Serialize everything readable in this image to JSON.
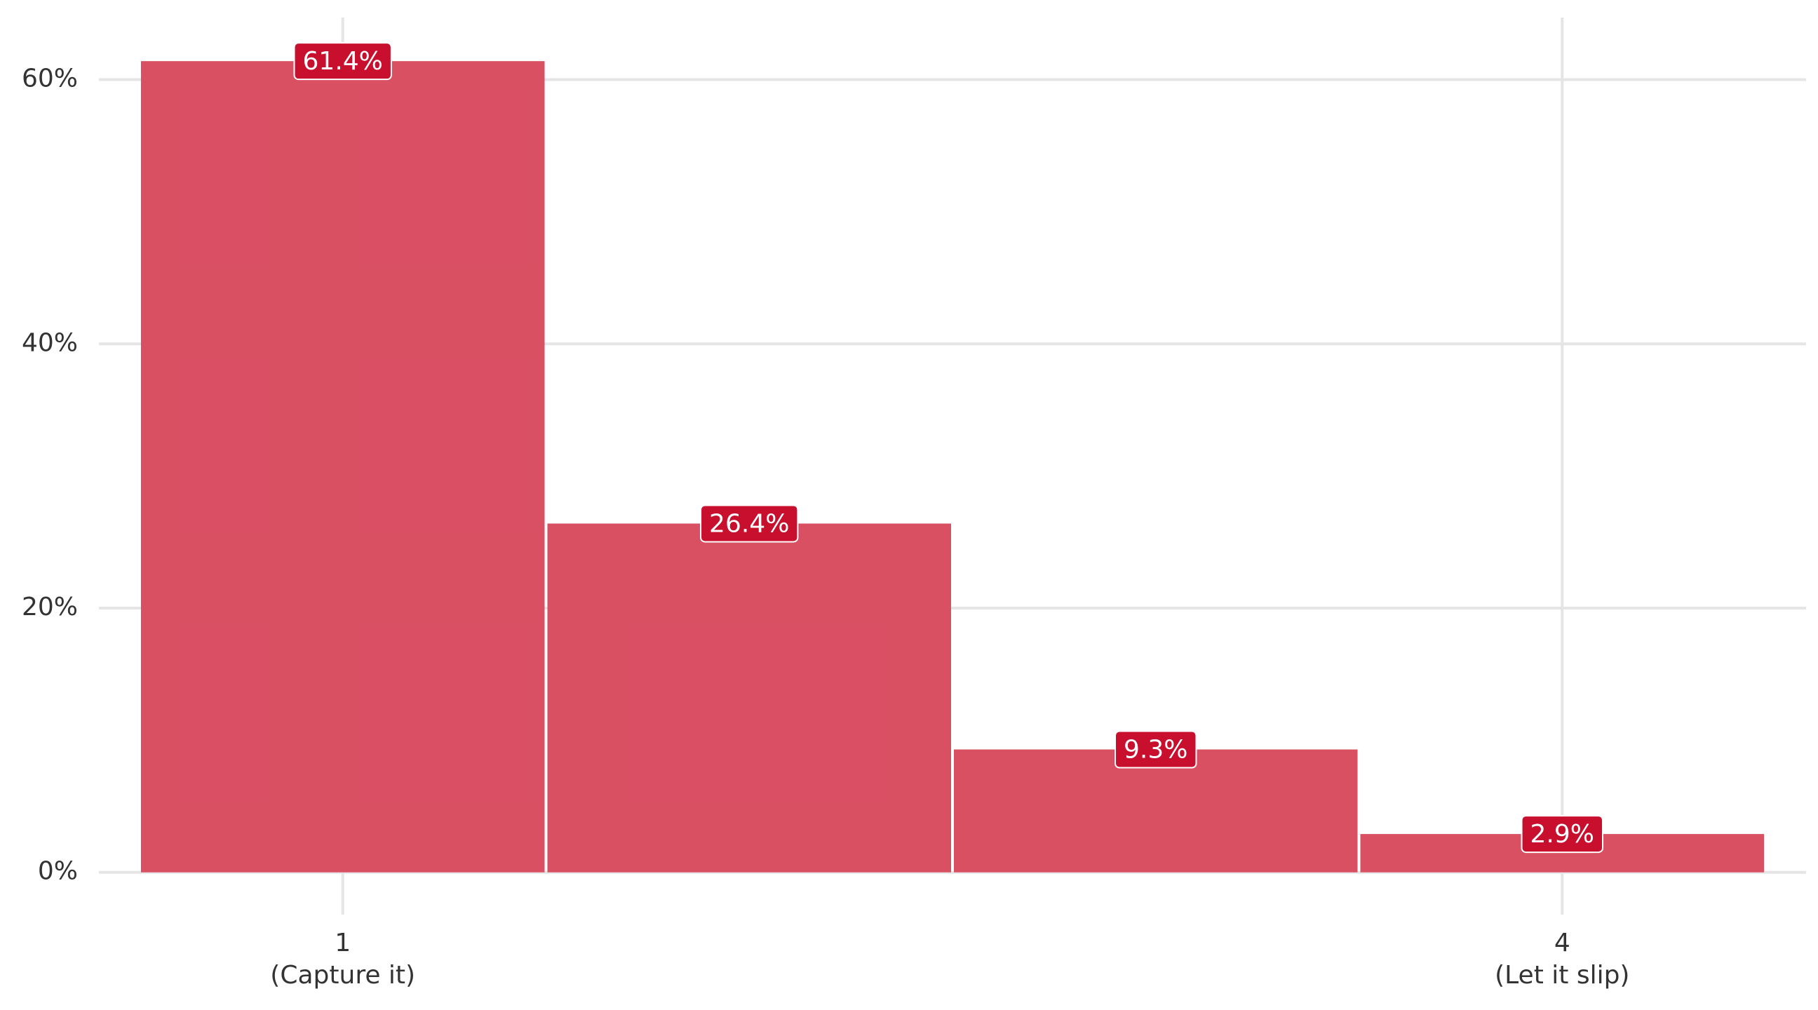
{
  "chart_data": {
    "type": "bar",
    "x": [
      1,
      2,
      3,
      4
    ],
    "values": [
      61.4,
      26.4,
      9.3,
      2.9
    ],
    "value_labels": [
      "61.4%",
      "26.4%",
      "9.3%",
      "2.9%"
    ],
    "color": "#d94a5e",
    "label_color": "#c8102e",
    "xlim": [
      0.4,
      4.6
    ],
    "xticks": [
      {
        "value": 1,
        "label": "1\n(Capture it)"
      },
      {
        "value": 4,
        "label": "4\n(Let it slip)"
      }
    ],
    "ylim": [
      -3.2,
      64.7
    ],
    "yticks": [
      {
        "value": 0,
        "label": "0%"
      },
      {
        "value": 20,
        "label": "20%"
      },
      {
        "value": 40,
        "label": "40%"
      },
      {
        "value": 60,
        "label": "60%"
      }
    ],
    "grid": true
  }
}
